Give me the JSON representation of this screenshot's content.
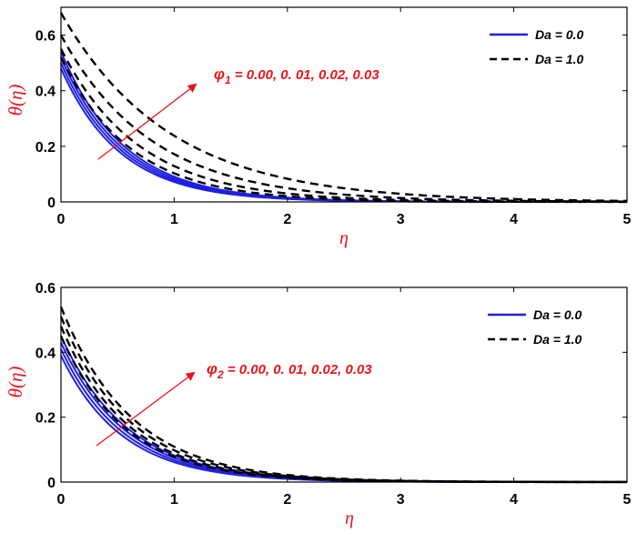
{
  "chart_data": [
    {
      "type": "line",
      "xlabel": "η",
      "ylabel": "θ(η)",
      "xlim": [
        0,
        5
      ],
      "ylim": [
        0,
        0.7
      ],
      "xticks": [
        "0",
        "1",
        "2",
        "3",
        "4",
        "5"
      ],
      "yticks": [
        "0",
        "0.2",
        "0.4",
        "0.6"
      ],
      "grid": false,
      "legend": {
        "placement": "top-right",
        "entries": [
          {
            "label": "Da = 0.0",
            "style": "solid",
            "color": "#1f1fe6"
          },
          {
            "label": "Da = 1.0",
            "style": "dashed",
            "color": "#000000"
          }
        ]
      },
      "annotation": {
        "symbol": "φ",
        "subscript": "1",
        "text": " = 0.00, 0. 01, 0.02, 0.03"
      },
      "series": [
        {
          "group": "Da = 0.0",
          "y0": 0.48,
          "decay": 1.9
        },
        {
          "group": "Da = 0.0",
          "y0": 0.5,
          "decay": 1.86
        },
        {
          "group": "Da = 0.0",
          "y0": 0.52,
          "decay": 1.82
        },
        {
          "group": "Da = 0.0",
          "y0": 0.54,
          "decay": 1.78
        },
        {
          "group": "Da = 1.0",
          "y0": 0.52,
          "decay": 1.62
        },
        {
          "group": "Da = 1.0",
          "y0": 0.55,
          "decay": 1.45
        },
        {
          "group": "Da = 1.0",
          "y0": 0.6,
          "decay": 1.25
        },
        {
          "group": "Da = 1.0",
          "y0": 0.68,
          "decay": 1.05
        }
      ]
    },
    {
      "type": "line",
      "xlabel": "η",
      "ylabel": "θ(η)",
      "xlim": [
        0,
        5
      ],
      "ylim": [
        0,
        0.6
      ],
      "xticks": [
        "0",
        "1",
        "2",
        "3",
        "4",
        "5"
      ],
      "yticks": [
        "0",
        "0.2",
        "0.4",
        "0.6"
      ],
      "grid": false,
      "legend": {
        "placement": "top-right",
        "entries": [
          {
            "label": "Da = 0.0",
            "style": "solid",
            "color": "#1f1fe6"
          },
          {
            "label": "Da = 1.0",
            "style": "dashed",
            "color": "#000000"
          }
        ]
      },
      "annotation": {
        "symbol": "φ",
        "subscript": "2",
        "text": " = 0.00, 0. 01, 0.02, 0.03"
      },
      "series": [
        {
          "group": "Da = 0.0",
          "y0": 0.39,
          "decay": 1.85
        },
        {
          "group": "Da = 0.0",
          "y0": 0.41,
          "decay": 1.8
        },
        {
          "group": "Da = 0.0",
          "y0": 0.43,
          "decay": 1.75
        },
        {
          "group": "Da = 0.0",
          "y0": 0.45,
          "decay": 1.7
        },
        {
          "group": "Da = 1.0",
          "y0": 0.45,
          "decay": 1.75
        },
        {
          "group": "Da = 1.0",
          "y0": 0.48,
          "decay": 1.7
        },
        {
          "group": "Da = 1.0",
          "y0": 0.51,
          "decay": 1.65
        },
        {
          "group": "Da = 1.0",
          "y0": 0.54,
          "decay": 1.6
        }
      ]
    }
  ]
}
